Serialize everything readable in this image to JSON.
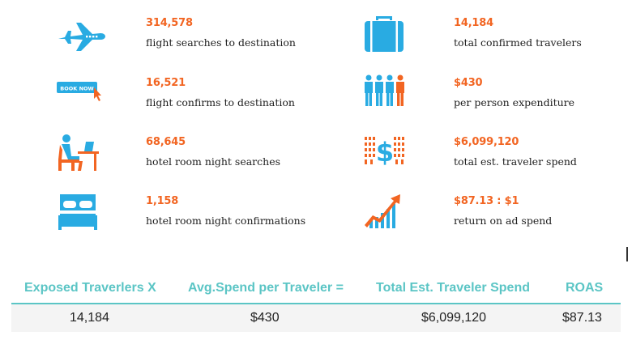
{
  "colors": {
    "accent_orange": "#f26522",
    "accent_blue": "#29abe2",
    "teal": "#5bc5c5",
    "text": "#1e1e1e"
  },
  "stats": [
    {
      "id": "flight-searches",
      "icon": "airplane-icon",
      "value": "314,578",
      "label": "flight searches to destination"
    },
    {
      "id": "confirmed-travelers",
      "icon": "suitcase-icon",
      "value": "14,184",
      "label": "total confirmed travelers"
    },
    {
      "id": "flight-confirms",
      "icon": "book-now-button-icon",
      "icon_text": "BOOK NOW",
      "value": "16,521",
      "label": "flight confirms to destination"
    },
    {
      "id": "per-person-expenditure",
      "icon": "people-group-icon",
      "value": "$430",
      "label": "per person expenditure"
    },
    {
      "id": "hotel-searches",
      "icon": "person-at-computer-icon",
      "value": "68,645",
      "label": "hotel room night searches"
    },
    {
      "id": "traveler-spend",
      "icon": "dollar-binary-icon",
      "value": "$6,099,120",
      "label": "total est. traveler spend"
    },
    {
      "id": "hotel-confirmations",
      "icon": "bed-icon",
      "value": "1,158",
      "label": "hotel room night confirmations"
    },
    {
      "id": "return-on-ad-spend",
      "icon": "growth-chart-icon",
      "value": "$87.13 : $1",
      "label": "return on ad spend"
    }
  ],
  "summary": {
    "headers": [
      "Exposed Traverlers X",
      "Avg.Spend per Traveler =",
      "Total Est. Traveler Spend",
      "ROAS"
    ],
    "values": [
      "14,184",
      "$430",
      "$6,099,120",
      "$87.13"
    ]
  }
}
